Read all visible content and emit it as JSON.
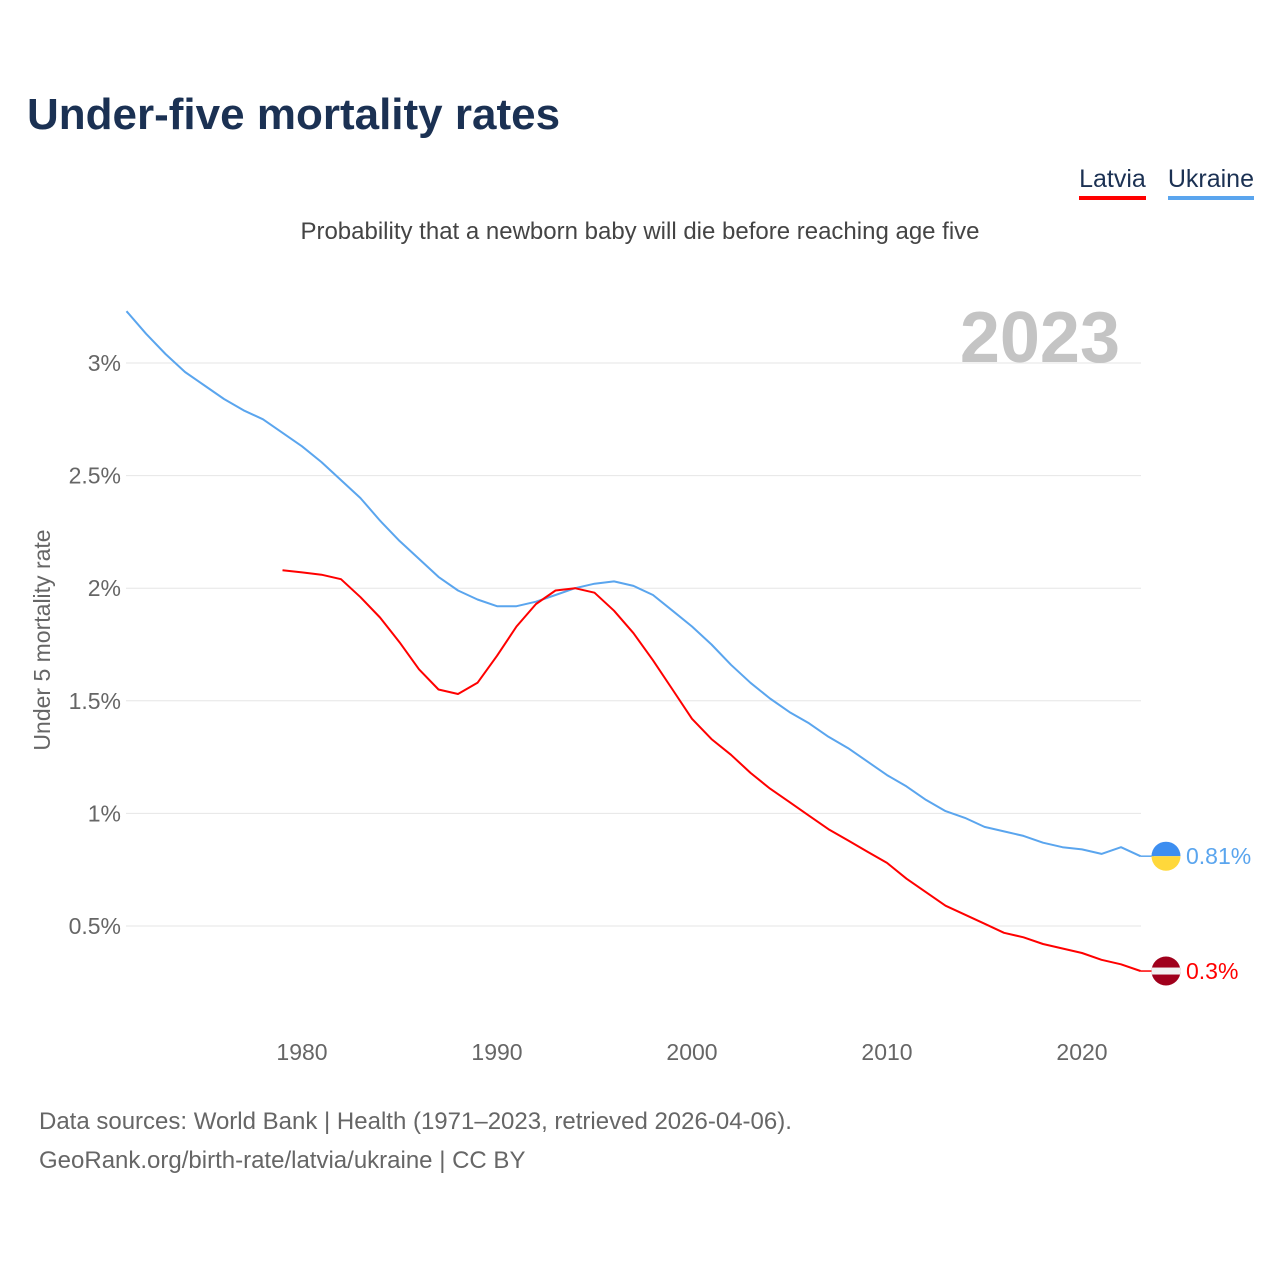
{
  "title": "Under-five mortality rates",
  "subtitle": "Probability that a newborn baby will die before reaching age five",
  "source_line1": "Data sources: World Bank | Health (1971–2023, retrieved 2026-04-06).",
  "source_line2": "GeoRank.org/birth-rate/latvia/ukraine | CC BY",
  "legend": [
    {
      "label": "Latvia",
      "color": "#ff0000"
    },
    {
      "label": "Ukraine",
      "color": "#5aa5ee"
    }
  ],
  "chart_data": {
    "type": "line",
    "title": "Under-five mortality rates",
    "ylabel": "Under 5 mortality rate",
    "xlabel": "",
    "year_label": "2023",
    "xlim": [
      1971,
      2023
    ],
    "ylim": [
      0,
      3.3
    ],
    "x_ticks": [
      1980,
      1990,
      2000,
      2010,
      2020
    ],
    "y_ticks": [
      {
        "v": 0.5,
        "label": "0.5%"
      },
      {
        "v": 1,
        "label": "1%"
      },
      {
        "v": 1.5,
        "label": "1.5%"
      },
      {
        "v": 2,
        "label": "2%"
      },
      {
        "v": 2.5,
        "label": "2.5%"
      },
      {
        "v": 3,
        "label": "3%"
      }
    ],
    "series": [
      {
        "name": "Ukraine",
        "color": "#5aa5ee",
        "start_year": 1971,
        "end_label": "0.81%",
        "values": [
          3.23,
          3.13,
          3.04,
          2.96,
          2.9,
          2.84,
          2.79,
          2.75,
          2.69,
          2.63,
          2.56,
          2.48,
          2.4,
          2.3,
          2.21,
          2.13,
          2.05,
          1.99,
          1.95,
          1.92,
          1.92,
          1.94,
          1.97,
          2.0,
          2.02,
          2.03,
          2.01,
          1.97,
          1.9,
          1.83,
          1.75,
          1.66,
          1.58,
          1.51,
          1.45,
          1.4,
          1.34,
          1.29,
          1.23,
          1.17,
          1.12,
          1.06,
          1.01,
          0.98,
          0.94,
          0.92,
          0.9,
          0.87,
          0.85,
          0.84,
          0.82,
          0.85,
          0.81
        ]
      },
      {
        "name": "Latvia",
        "color": "#ff0000",
        "start_year": 1979,
        "end_label": "0.3%",
        "values": [
          2.08,
          2.07,
          2.06,
          2.04,
          1.96,
          1.87,
          1.76,
          1.64,
          1.55,
          1.53,
          1.58,
          1.7,
          1.83,
          1.93,
          1.99,
          2.0,
          1.98,
          1.9,
          1.8,
          1.68,
          1.55,
          1.42,
          1.33,
          1.26,
          1.18,
          1.11,
          1.05,
          0.99,
          0.93,
          0.88,
          0.83,
          0.78,
          0.71,
          0.65,
          0.59,
          0.55,
          0.51,
          0.47,
          0.45,
          0.42,
          0.4,
          0.38,
          0.35,
          0.33,
          0.3
        ]
      }
    ]
  }
}
